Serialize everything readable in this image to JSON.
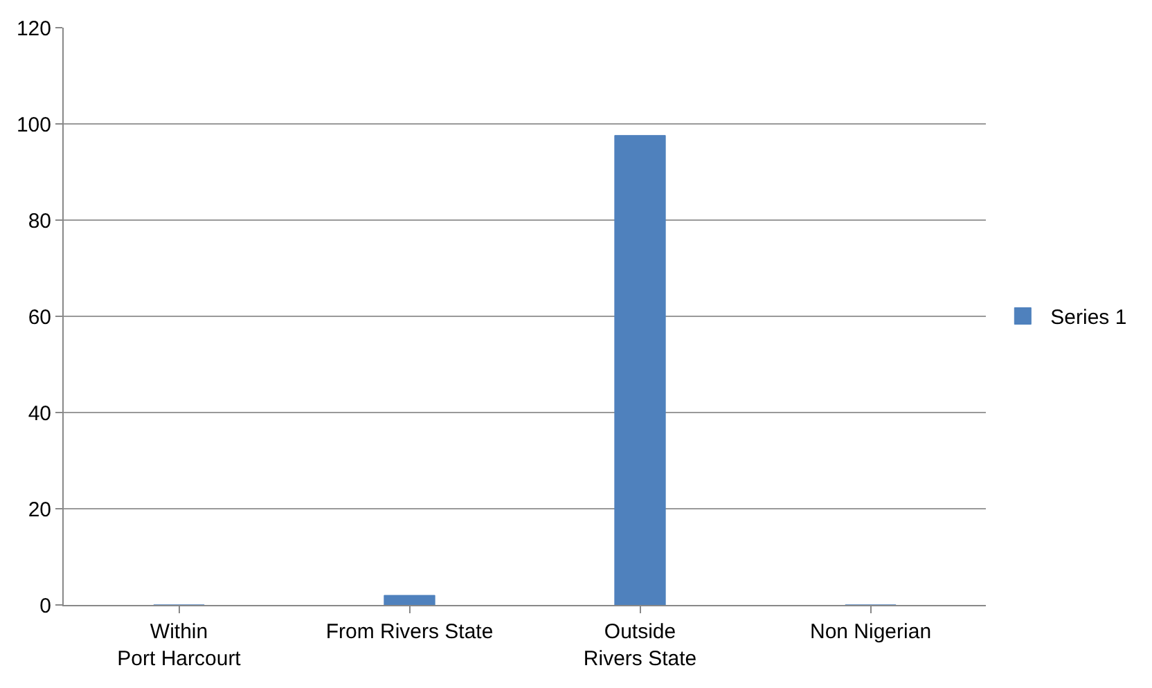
{
  "chart_data": {
    "type": "bar",
    "categories": [
      "Within Port Harcourt",
      "From Rivers State",
      "Outside Rivers State",
      "Non Nigerian"
    ],
    "series": [
      {
        "name": "Series 1",
        "color": "#4f81bd",
        "values": [
          0,
          2,
          97.6,
          0
        ]
      }
    ],
    "ylim": [
      0,
      120
    ],
    "yticks": [
      0,
      20,
      40,
      60,
      80,
      100,
      120
    ],
    "grid": "y",
    "legend": "right"
  }
}
